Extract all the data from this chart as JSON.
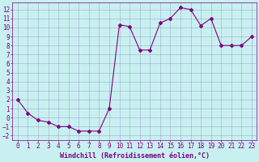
{
  "x": [
    0,
    1,
    2,
    3,
    4,
    5,
    6,
    7,
    8,
    9,
    10,
    11,
    12,
    13,
    14,
    15,
    16,
    17,
    18,
    19,
    20,
    21,
    22,
    23
  ],
  "y": [
    2.0,
    0.5,
    -0.3,
    -0.5,
    -1.0,
    -1.0,
    -1.5,
    -1.5,
    -1.5,
    1.0,
    10.3,
    10.1,
    7.5,
    7.5,
    10.5,
    11.0,
    12.2,
    12.0,
    10.2,
    11.0,
    8.0,
    8.0,
    8.0,
    9.0
  ],
  "line_color": "#800080",
  "marker": "D",
  "marker_size": 2,
  "bg_color": "#c8f0f0",
  "grid_color": "#9090c0",
  "xlabel": "Windchill (Refroidissement éolien,°C)",
  "xlabel_color": "#800080",
  "xlabel_fontsize": 6,
  "tick_color": "#800080",
  "tick_fontsize": 5.5,
  "xlim": [
    -0.5,
    23.5
  ],
  "ylim": [
    -2.5,
    12.8
  ],
  "yticks": [
    -2,
    -1,
    0,
    1,
    2,
    3,
    4,
    5,
    6,
    7,
    8,
    9,
    10,
    11,
    12
  ],
  "xticks": [
    0,
    1,
    2,
    3,
    4,
    5,
    6,
    7,
    8,
    9,
    10,
    11,
    12,
    13,
    14,
    15,
    16,
    17,
    18,
    19,
    20,
    21,
    22,
    23
  ]
}
